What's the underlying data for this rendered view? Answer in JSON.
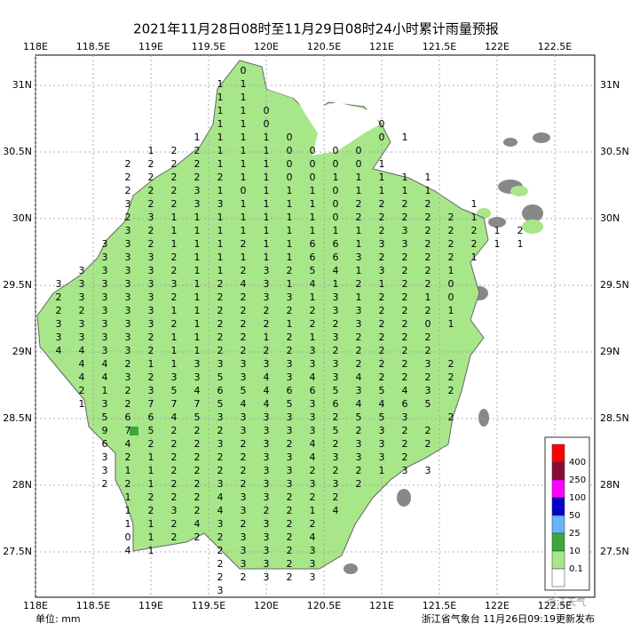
{
  "header": {
    "title": "2021年11月28日08时至11月29日08时24小时累计雨量预报"
  },
  "map": {
    "xticks": [
      {
        "value": 118,
        "label": "118E"
      },
      {
        "value": 118.5,
        "label": "118.5E"
      },
      {
        "value": 119,
        "label": "119E"
      },
      {
        "value": 119.5,
        "label": "119.5E"
      },
      {
        "value": 120,
        "label": "120E"
      },
      {
        "value": 120.5,
        "label": "120.5E"
      },
      {
        "value": 121,
        "label": "121E"
      },
      {
        "value": 121.5,
        "label": "121.5E"
      },
      {
        "value": 122,
        "label": "122E"
      },
      {
        "value": 122.5,
        "label": "122.5E"
      }
    ],
    "yticks": [
      {
        "value": 31,
        "label": "31N"
      },
      {
        "value": 30.5,
        "label": "30.5N"
      },
      {
        "value": 30,
        "label": "30N"
      },
      {
        "value": 29.5,
        "label": "29.5N"
      },
      {
        "value": 29,
        "label": "29N"
      },
      {
        "value": 28.5,
        "label": "28.5N"
      },
      {
        "value": 28,
        "label": "28N"
      },
      {
        "value": 27.5,
        "label": "27.5N"
      }
    ],
    "grid_values": [
      [
        null,
        null,
        null,
        null,
        null,
        null,
        null,
        null,
        0
      ],
      [
        null,
        null,
        null,
        null,
        null,
        null,
        null,
        1,
        1
      ],
      [
        null,
        null,
        null,
        null,
        null,
        null,
        null,
        1,
        1
      ],
      [
        null,
        null,
        null,
        null,
        null,
        null,
        null,
        1,
        1,
        0
      ],
      [
        null,
        null,
        null,
        null,
        null,
        null,
        null,
        1,
        1,
        0,
        null,
        null,
        null,
        null,
        0
      ],
      [
        null,
        null,
        null,
        null,
        null,
        null,
        1,
        1,
        1,
        1,
        0,
        null,
        null,
        null,
        0,
        1
      ],
      [
        null,
        null,
        null,
        null,
        1,
        2,
        2,
        1,
        1,
        1,
        0,
        0,
        0,
        0
      ],
      [
        null,
        null,
        null,
        2,
        2,
        2,
        2,
        1,
        1,
        1,
        0,
        0,
        0,
        0,
        1
      ],
      [
        null,
        null,
        null,
        2,
        2,
        2,
        2,
        2,
        1,
        1,
        0,
        0,
        1,
        1,
        1,
        1,
        1
      ],
      [
        null,
        null,
        null,
        2,
        2,
        2,
        3,
        1,
        0,
        1,
        1,
        1,
        0,
        1,
        1,
        1,
        1
      ],
      [
        null,
        null,
        null,
        3,
        2,
        2,
        3,
        3,
        1,
        1,
        1,
        1,
        0,
        2,
        2,
        2,
        2,
        null,
        1
      ],
      [
        null,
        null,
        null,
        2,
        3,
        1,
        1,
        1,
        1,
        1,
        1,
        1,
        0,
        2,
        2,
        2,
        2,
        2,
        1
      ],
      [
        null,
        null,
        null,
        3,
        2,
        1,
        1,
        1,
        1,
        1,
        1,
        1,
        1,
        1,
        2,
        3,
        2,
        2,
        2,
        1,
        2
      ],
      [
        null,
        null,
        3,
        3,
        2,
        1,
        1,
        1,
        2,
        1,
        1,
        6,
        6,
        1,
        3,
        3,
        2,
        2,
        2,
        1,
        1
      ],
      [
        null,
        null,
        3,
        3,
        3,
        2,
        1,
        1,
        1,
        1,
        1,
        6,
        6,
        3,
        2,
        2,
        2,
        2,
        1
      ],
      [
        null,
        3,
        3,
        3,
        3,
        2,
        1,
        1,
        2,
        3,
        2,
        5,
        4,
        1,
        3,
        2,
        2,
        1
      ],
      [
        3,
        3,
        3,
        3,
        3,
        3,
        1,
        2,
        4,
        3,
        1,
        4,
        1,
        2,
        1,
        2,
        2,
        0
      ],
      [
        2,
        3,
        3,
        3,
        3,
        2,
        1,
        2,
        2,
        3,
        3,
        1,
        3,
        1,
        2,
        2,
        1,
        0
      ],
      [
        2,
        2,
        3,
        3,
        3,
        1,
        1,
        2,
        2,
        2,
        2,
        2,
        3,
        3,
        2,
        2,
        2,
        1
      ],
      [
        3,
        3,
        3,
        3,
        3,
        2,
        1,
        2,
        2,
        2,
        1,
        2,
        2,
        3,
        2,
        2,
        0,
        1
      ],
      [
        3,
        3,
        3,
        3,
        2,
        1,
        1,
        2,
        2,
        1,
        2,
        1,
        3,
        2,
        2,
        2,
        2
      ],
      [
        4,
        4,
        3,
        3,
        2,
        1,
        1,
        2,
        2,
        2,
        2,
        3,
        2,
        2,
        2,
        2,
        2
      ],
      [
        null,
        4,
        4,
        2,
        1,
        1,
        3,
        3,
        3,
        3,
        3,
        3,
        3,
        2,
        2,
        2,
        3,
        2
      ],
      [
        null,
        4,
        4,
        3,
        2,
        3,
        3,
        5,
        3,
        4,
        3,
        4,
        3,
        4,
        2,
        2,
        2,
        2
      ],
      [
        null,
        2,
        1,
        2,
        3,
        5,
        4,
        6,
        5,
        4,
        6,
        6,
        5,
        3,
        5,
        4,
        3,
        2
      ],
      [
        null,
        1,
        3,
        2,
        7,
        7,
        7,
        5,
        4,
        4,
        5,
        3,
        6,
        4,
        4,
        6,
        5
      ],
      [
        null,
        null,
        5,
        6,
        6,
        4,
        5,
        3,
        3,
        3,
        3,
        3,
        2,
        5,
        5,
        3,
        null,
        2
      ],
      [
        null,
        null,
        9,
        7,
        5,
        2,
        2,
        2,
        3,
        3,
        3,
        3,
        5,
        2,
        3,
        2,
        2
      ],
      [
        null,
        null,
        6,
        4,
        2,
        2,
        2,
        3,
        2,
        3,
        2,
        4,
        2,
        3,
        3,
        2,
        2
      ],
      [
        null,
        null,
        3,
        2,
        1,
        2,
        2,
        2,
        2,
        3,
        3,
        4,
        3,
        3,
        3,
        2
      ],
      [
        null,
        null,
        3,
        1,
        1,
        2,
        2,
        2,
        2,
        3,
        3,
        2,
        2,
        2,
        1,
        3,
        3
      ],
      [
        null,
        null,
        2,
        2,
        1,
        2,
        2,
        3,
        2,
        3,
        3,
        3,
        3,
        2
      ],
      [
        null,
        null,
        null,
        1,
        2,
        2,
        2,
        4,
        3,
        3,
        2,
        2,
        2
      ],
      [
        null,
        null,
        null,
        1,
        2,
        3,
        2,
        4,
        3,
        2,
        2,
        1,
        4
      ],
      [
        null,
        null,
        null,
        1,
        1,
        2,
        4,
        3,
        2,
        3,
        2,
        2
      ],
      [
        null,
        null,
        null,
        0,
        1,
        2,
        2,
        2,
        3,
        3,
        2,
        4
      ],
      [
        null,
        null,
        null,
        4,
        1,
        null,
        null,
        2,
        3,
        3,
        2,
        3
      ],
      [
        null,
        null,
        null,
        null,
        null,
        null,
        null,
        2,
        3,
        3,
        2,
        3
      ],
      [
        null,
        null,
        null,
        null,
        null,
        null,
        null,
        2,
        2,
        3,
        2,
        3
      ],
      [
        null,
        null,
        null,
        null,
        null,
        null,
        null,
        3
      ]
    ]
  },
  "legend": {
    "colors": [
      "#ff0000",
      "#8b0a3a",
      "#ff00ff",
      "#0000cc",
      "#66b3ff",
      "#3aa83a",
      "#a8e68a",
      "#ffffff"
    ],
    "labels": [
      "400",
      "250",
      "100",
      "50",
      "25",
      "10",
      "0.1"
    ]
  },
  "footer": {
    "unit": "单位: mm",
    "source": "浙江省气象台 11月26日09:19更新发布",
    "watermark": "浙江天气"
  }
}
